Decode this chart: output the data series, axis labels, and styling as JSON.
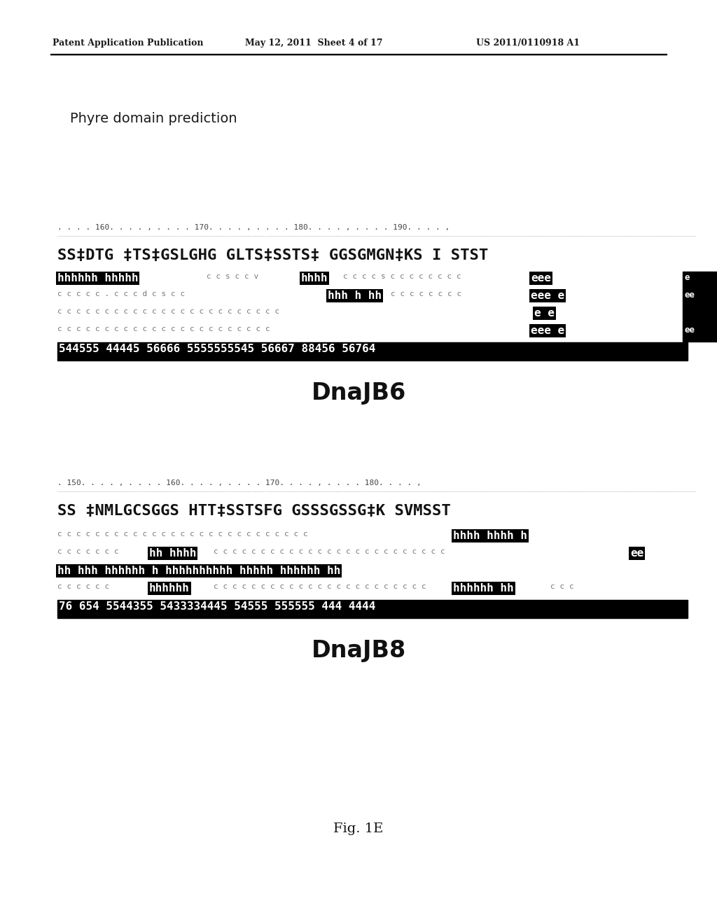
{
  "title_header_left": "Patent Application Publication",
  "title_header_mid": "May 12, 2011  Sheet 4 of 17",
  "title_header_right": "US 2011/0110918 A1",
  "section_title": "Phyre domain prediction",
  "dnajb6_label": "DnaJB6",
  "dnajb8_label": "DnaJB8",
  "fig_label": "Fig. 1E",
  "bg_color": "#ffffff"
}
